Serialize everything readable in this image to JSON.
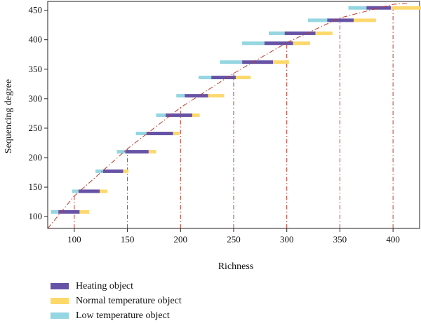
{
  "chart_data": {
    "type": "bar",
    "title": "",
    "xlabel": "Richness",
    "ylabel": "Sequencing degree",
    "xlim": [
      75,
      425
    ],
    "ylim": [
      80,
      465
    ],
    "x_ticks": [
      "100",
      "150",
      "200",
      "250",
      "300",
      "350",
      "400"
    ],
    "y_ticks": [
      "100",
      "150",
      "200",
      "250",
      "300",
      "350",
      "400",
      "450"
    ],
    "grid": false,
    "legend_position": "bottom-left",
    "curve": {
      "style": "dash-dot",
      "color": "#c0392b",
      "x": [
        75,
        100,
        150,
        200,
        250,
        300,
        350,
        400,
        415
      ],
      "y": [
        80,
        135,
        215,
        285,
        343,
        395,
        437,
        460,
        462
      ]
    },
    "reference_lines": {
      "style": "dash-dot",
      "color": "#c0392b",
      "x": [
        100,
        150,
        200,
        250,
        300,
        350,
        400
      ]
    },
    "series": [
      {
        "name": "Heating object",
        "color": "#6753a6"
      },
      {
        "name": "Normal temperature object",
        "color": "#fdd96b"
      },
      {
        "name": "Low temperature object",
        "color": "#94d6e1"
      }
    ],
    "bars": [
      {
        "y": 108,
        "low": [
          78,
          85
        ],
        "heating": [
          85,
          105
        ],
        "normal": [
          105,
          114
        ]
      },
      {
        "y": 143,
        "low": [
          98,
          104
        ],
        "heating": [
          104,
          124
        ],
        "normal": [
          124,
          131
        ]
      },
      {
        "y": 177,
        "low": [
          120,
          127
        ],
        "heating": [
          127,
          146
        ],
        "normal": [
          146,
          151
        ]
      },
      {
        "y": 210,
        "low": [
          140,
          148
        ],
        "heating": [
          148,
          170
        ],
        "normal": [
          170,
          177
        ]
      },
      {
        "y": 241,
        "low": [
          158,
          168
        ],
        "heating": [
          168,
          193
        ],
        "normal": [
          193,
          199
        ]
      },
      {
        "y": 272,
        "low": [
          177,
          186
        ],
        "heating": [
          186,
          211
        ],
        "normal": [
          211,
          218
        ]
      },
      {
        "y": 305,
        "low": [
          196,
          204
        ],
        "heating": [
          204,
          226
        ],
        "normal": [
          226,
          241
        ]
      },
      {
        "y": 336,
        "low": [
          217,
          229
        ],
        "heating": [
          229,
          252
        ],
        "normal": [
          252,
          266
        ]
      },
      {
        "y": 362,
        "low": [
          237,
          258
        ],
        "heating": [
          258,
          287
        ],
        "normal": [
          287,
          302
        ]
      },
      {
        "y": 394,
        "low": [
          258,
          279
        ],
        "heating": [
          279,
          306
        ],
        "normal": [
          306,
          322
        ]
      },
      {
        "y": 411,
        "low": [
          283,
          298
        ],
        "heating": [
          298,
          327
        ],
        "normal": [
          327,
          343
        ]
      },
      {
        "y": 433,
        "low": [
          320,
          338
        ],
        "heating": [
          338,
          363
        ],
        "normal": [
          363,
          384
        ]
      },
      {
        "y": 454,
        "low": [
          358,
          375
        ],
        "heating": [
          375,
          398
        ],
        "normal": [
          398,
          428
        ]
      }
    ]
  }
}
